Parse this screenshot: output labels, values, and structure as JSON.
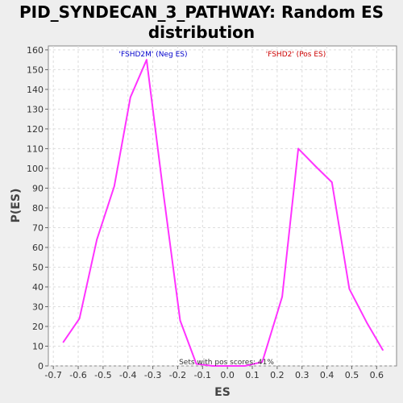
{
  "chart_data": {
    "type": "line",
    "title_lines": [
      "PID_SYNDECAN_3_PATHWAY: Random ES",
      "distribution"
    ],
    "xlabel": "ES",
    "ylabel": "P(ES)",
    "xlim": [
      -0.72,
      0.68
    ],
    "ylim": [
      0,
      162
    ],
    "x_ticks": [
      -0.7,
      -0.6,
      -0.5,
      -0.4,
      -0.3,
      -0.2,
      -0.1,
      0.0,
      0.1,
      0.2,
      0.3,
      0.4,
      0.5,
      0.6
    ],
    "x_tick_labels": [
      "-0.7",
      "-0.6",
      "-0.5",
      "-0.4",
      "-0.3",
      "-0.2",
      "-0.1",
      "0.0",
      "0.1",
      "0.2",
      "0.3",
      "0.4",
      "0.5",
      "0.6"
    ],
    "y_ticks": [
      0,
      10,
      20,
      30,
      40,
      50,
      60,
      70,
      80,
      90,
      100,
      110,
      120,
      130,
      140,
      150,
      160
    ],
    "grid": true,
    "series": [
      {
        "color": "#ff33ff",
        "x": [
          -0.66,
          -0.595,
          -0.525,
          -0.455,
          -0.39,
          -0.325,
          -0.255,
          -0.19,
          -0.125,
          -0.06,
          0.0,
          0.07,
          0.14,
          0.22,
          0.285,
          0.355,
          0.42,
          0.49,
          0.56,
          0.625
        ],
        "y": [
          12,
          24,
          64,
          91,
          136,
          155,
          85,
          23,
          1,
          0,
          0,
          0,
          2,
          35,
          110,
          101,
          93,
          39,
          22,
          8
        ]
      }
    ],
    "annotations": {
      "neg_label": "'FSHD2M' (Neg ES)",
      "neg_color": "#0000cc",
      "pos_label": "'FSHD2' (Pos ES)",
      "pos_color": "#cc0000",
      "sets_text": "Sets with pos scores: 41%"
    }
  }
}
